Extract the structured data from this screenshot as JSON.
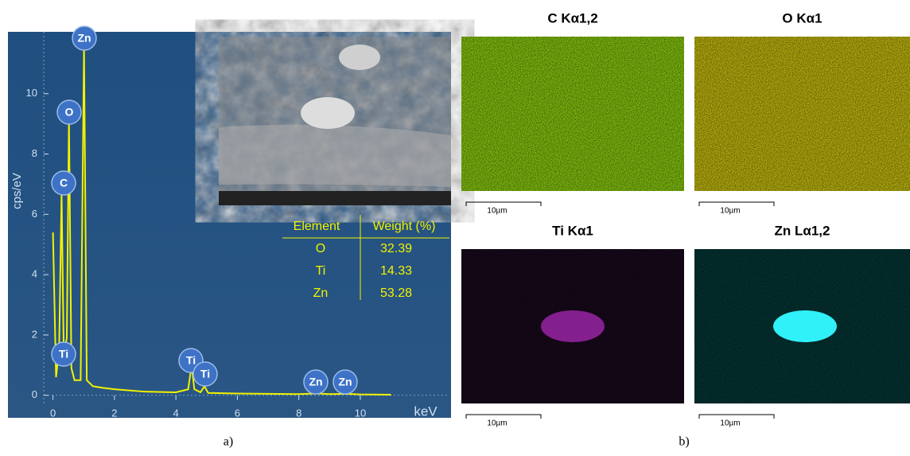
{
  "chart_data": {
    "type": "line",
    "x_label": "keV",
    "y_label": "cps/eV",
    "x": [
      0.0,
      0.1,
      0.2,
      0.28,
      0.35,
      0.45,
      0.52,
      0.6,
      0.7,
      0.9,
      1.01,
      1.1,
      1.3,
      1.6,
      2.0,
      3.0,
      4.0,
      4.4,
      4.51,
      4.6,
      4.8,
      4.93,
      5.05,
      6.0,
      7.0,
      8.0,
      8.63,
      9.0,
      9.57,
      10.0,
      11.0
    ],
    "series": [
      {
        "color": "#f2f200",
        "values": [
          5.4,
          0.6,
          1.5,
          6.7,
          1.4,
          1.9,
          9.2,
          0.9,
          0.5,
          0.5,
          11.6,
          0.5,
          0.3,
          0.25,
          0.2,
          0.12,
          0.1,
          0.2,
          1.0,
          0.2,
          0.1,
          0.3,
          0.08,
          0.06,
          0.05,
          0.04,
          0.06,
          0.04,
          0.05,
          0.03,
          0.02
        ]
      }
    ],
    "xlim": [
      -0.3,
      12.9
    ],
    "ylim": [
      -0.35,
      12.05
    ],
    "xticks": [
      0,
      2,
      4,
      6,
      8,
      10
    ],
    "yticks": [
      0,
      2,
      4,
      6,
      8,
      10
    ],
    "peak_labels": [
      "Zn",
      "O",
      "C",
      "Ti",
      "Ti",
      "Ti",
      "Zn",
      "Zn"
    ]
  },
  "table": {
    "header": [
      "Element",
      "Weight (%)"
    ],
    "rows": [
      [
        "O",
        32.39
      ],
      [
        "Ti",
        14.33
      ],
      [
        "Zn",
        53.28
      ]
    ]
  },
  "maps": [
    {
      "title": "C Kα1,2",
      "scale": "10µm"
    },
    {
      "title": "O Kα1",
      "scale": "10µm"
    },
    {
      "title": "Ti Kα1",
      "scale": "10µm"
    },
    {
      "title": "Zn Lα1,2",
      "scale": "10µm"
    }
  ],
  "captions": [
    "a)",
    "b)"
  ]
}
